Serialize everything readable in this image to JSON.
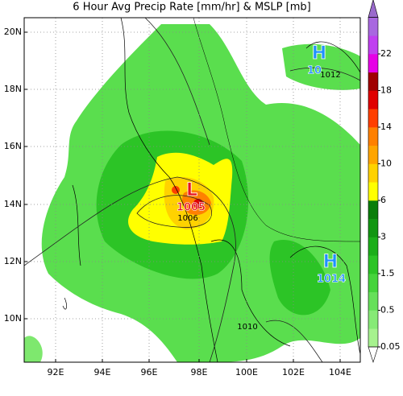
{
  "title": "6 Hour Avg Precip Rate [mm/hr] & MSLP [mb]",
  "map": {
    "lat_labels": [
      "20N",
      "18N",
      "16N",
      "14N",
      "12N",
      "10N"
    ],
    "lon_labels": [
      "92E",
      "94E",
      "96E",
      "98E",
      "100E",
      "102E",
      "104E"
    ],
    "centers": [
      {
        "symbol": "H",
        "pressure": "10",
        "color": "#1e90ff"
      },
      {
        "symbol": "L",
        "pressure": "1005",
        "color": "#e8141e"
      },
      {
        "symbol": "H",
        "pressure": "1014",
        "color": "#1e90ff"
      }
    ],
    "isobar_labels": [
      "1006",
      "1012",
      "1010"
    ]
  },
  "colorbar": {
    "labels": [
      "0.05",
      "0.5",
      "1.5",
      "3",
      "6",
      "10",
      "14",
      "18",
      "22"
    ],
    "colors": [
      "#a6f28e",
      "#86ea76",
      "#66e05a",
      "#46d43c",
      "#2cc426",
      "#1cae1a",
      "#129612",
      "#0a7e0a",
      "#ffff00",
      "#ffd200",
      "#ffa500",
      "#ff8000",
      "#ff4000",
      "#e00000",
      "#a00000",
      "#e600e6",
      "#c040f0",
      "#a868e0"
    ],
    "under_color": "#ffffff",
    "over_color": "#9a6acc"
  }
}
